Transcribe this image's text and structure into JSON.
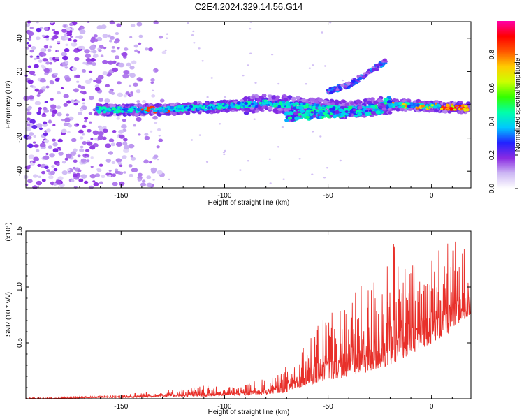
{
  "title": "C2E4.2024.329.14.56.G14",
  "chart_data": [
    {
      "type": "heatmap",
      "xlabel": "Height of straight line (km)",
      "ylabel": "Frequency (Hz)",
      "xlim": [
        -196,
        19
      ],
      "ylim": [
        -50,
        50
      ],
      "xticks": [
        "-150",
        "-100",
        "-50",
        "0"
      ],
      "xtick_values": [
        -150,
        -100,
        -50,
        0
      ],
      "yticks": [
        "40",
        "20",
        "0",
        "-20",
        "-40"
      ],
      "ytick_values": [
        40,
        20,
        0,
        -20,
        -40
      ],
      "colorbar": {
        "label": "Normalized spectral amplitude",
        "range": [
          0,
          1
        ],
        "ticks": [
          "0.0",
          "0.2",
          "0.4",
          "0.6",
          "0.8"
        ],
        "tick_values": [
          0.0,
          0.2,
          0.4,
          0.6,
          0.8
        ],
        "colors": [
          "#ffffff",
          "#cdb8f4",
          "#8a2be2",
          "#2222ff",
          "#00c8ff",
          "#00ffaa",
          "#33ff00",
          "#ccff00",
          "#ffcc00",
          "#ff5500",
          "#ff0000",
          "#ff00aa"
        ]
      },
      "features": {
        "noise_region_x": [
          -196,
          -140
        ],
        "main_ridge": [
          [
            -162,
            -3
          ],
          [
            -130,
            -3
          ],
          [
            -100,
            -1
          ],
          [
            -80,
            1
          ],
          [
            -60,
            -1
          ],
          [
            -40,
            -3
          ],
          [
            -20,
            0
          ],
          [
            0,
            -1
          ],
          [
            18,
            -2
          ]
        ],
        "upper_branch": [
          [
            -50,
            8
          ],
          [
            -40,
            12
          ],
          [
            -32,
            18
          ],
          [
            -22,
            26
          ]
        ],
        "lower_branch": [
          [
            -70,
            -7
          ],
          [
            -50,
            -5
          ],
          [
            -40,
            -4
          ],
          [
            -25,
            -3
          ],
          [
            -20,
            3
          ]
        ],
        "peak_region_x": [
          5,
          18
        ]
      }
    },
    {
      "type": "line",
      "xlabel": "Height of straight line (km)",
      "ylabel": "SNR (10 * v/v)",
      "y_multiplier": "(x10⁴)",
      "xlim": [
        -196,
        19
      ],
      "ylim": [
        0,
        1.5
      ],
      "xticks": [
        "-150",
        "-100",
        "-50",
        "0"
      ],
      "xtick_values": [
        -150,
        -100,
        -50,
        0
      ],
      "yticks": [
        "0.5",
        "1.0",
        "1.5"
      ],
      "ytick_values": [
        0.5,
        1.0,
        1.5
      ],
      "color": "#e8302a",
      "envelope": {
        "x": [
          -196,
          -180,
          -160,
          -140,
          -130,
          -120,
          -110,
          -100,
          -90,
          -80,
          -75,
          -70,
          -65,
          -60,
          -55,
          -50,
          -45,
          -40,
          -35,
          -30,
          -25,
          -20,
          -15,
          -10,
          -5,
          0,
          5,
          10,
          15,
          19
        ],
        "base": [
          0.0,
          0.0,
          0.01,
          0.01,
          0.02,
          0.02,
          0.02,
          0.03,
          0.03,
          0.04,
          0.05,
          0.06,
          0.1,
          0.12,
          0.14,
          0.17,
          0.18,
          0.2,
          0.22,
          0.24,
          0.27,
          0.3,
          0.35,
          0.4,
          0.45,
          0.5,
          0.55,
          0.6,
          0.7,
          0.75
        ],
        "peak": [
          0.01,
          0.02,
          0.03,
          0.06,
          0.08,
          0.09,
          0.12,
          0.1,
          0.14,
          0.18,
          0.2,
          0.3,
          0.45,
          0.55,
          0.65,
          0.9,
          0.85,
          0.95,
          1.0,
          1.05,
          1.25,
          1.52,
          1.25,
          1.2,
          1.3,
          1.35,
          1.4,
          1.45,
          1.38,
          1.35
        ]
      }
    }
  ]
}
